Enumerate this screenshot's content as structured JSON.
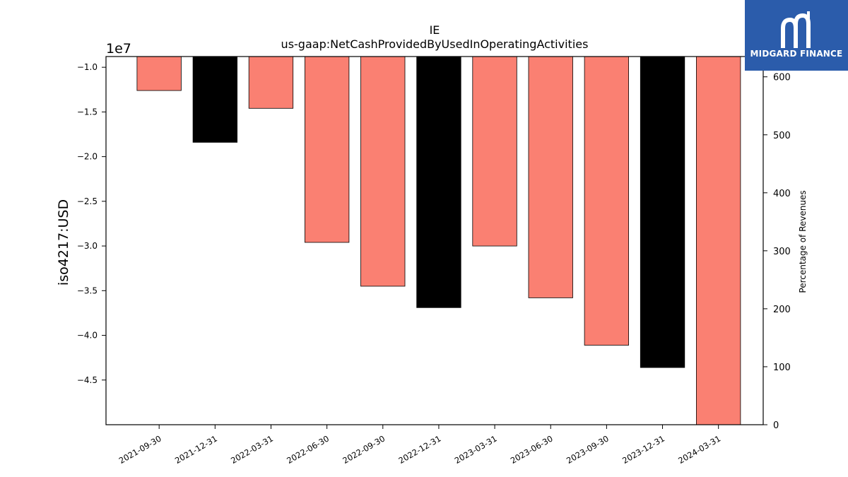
{
  "chart_data": {
    "type": "bar",
    "title": "IE",
    "subtitle": "us-gaap:NetCashProvidedByUsedInOperatingActivities",
    "ylabel": "iso4217:USD",
    "y2label": "Percentage of Revenues",
    "offset_text": "1e7",
    "categories": [
      "2021-09-30",
      "2021-12-31",
      "2022-03-31",
      "2022-06-30",
      "2022-09-30",
      "2022-12-31",
      "2023-03-31",
      "2023-06-30",
      "2023-09-30",
      "2023-12-31",
      "2024-03-31"
    ],
    "values": [
      -12600000,
      -18400000,
      -14600000,
      -29600000,
      -34500000,
      -36900000,
      -30000000,
      -35800000,
      -41100000,
      -43600000,
      -50000000
    ],
    "bar_colors": [
      "#fa8072",
      "#000000",
      "#fa8072",
      "#fa8072",
      "#fa8072",
      "#000000",
      "#fa8072",
      "#fa8072",
      "#fa8072",
      "#000000",
      "#fa8072"
    ],
    "ylim": [
      -50000000,
      -8800000
    ],
    "yticks": [
      -10000000,
      -15000000,
      -20000000,
      -25000000,
      -30000000,
      -35000000,
      -40000000,
      -45000000
    ],
    "ytick_labels": [
      "−1.0",
      "−1.5",
      "−2.0",
      "−2.5",
      "−3.0",
      "−3.5",
      "−4.0",
      "−4.5"
    ],
    "y2lim": [
      0,
      635
    ],
    "y2ticks": [
      0,
      100,
      200,
      300,
      400,
      500,
      600
    ],
    "y2tick_labels": [
      "0",
      "100",
      "200",
      "300",
      "400",
      "500",
      "600"
    ],
    "grid": false
  },
  "logo": {
    "text": "MIDGARD FINANCE"
  }
}
